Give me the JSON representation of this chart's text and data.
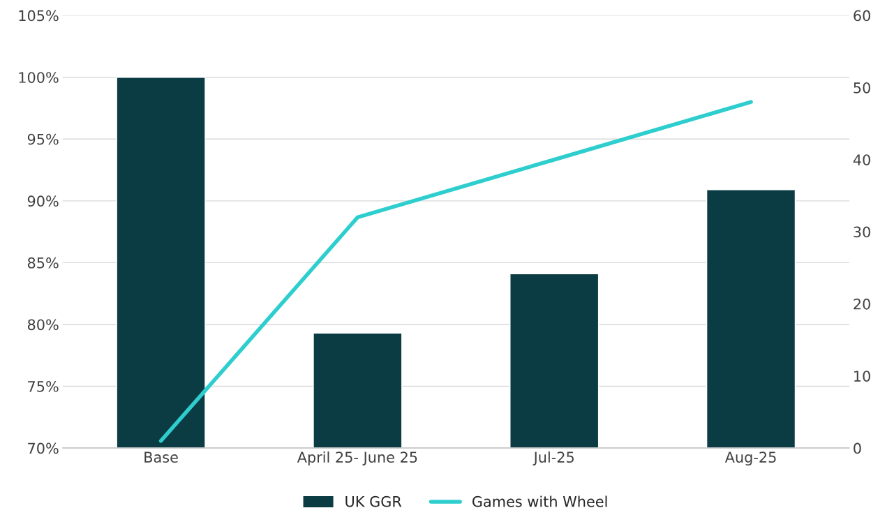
{
  "chart_data": {
    "type": "bar",
    "categories": [
      "Base",
      "April 25- June 25",
      "Jul-25",
      "Aug-25"
    ],
    "series": [
      {
        "name": "UK GGR",
        "color": "#0b3c43",
        "values": [
          100,
          79.3,
          84.1,
          90.9
        ]
      },
      {
        "name": "Games with Wheel",
        "type": "line",
        "axis": "y2",
        "color": "#2ecece",
        "values": [
          1,
          32,
          40,
          48
        ]
      }
    ],
    "ylim": [
      70,
      105
    ],
    "yticks": [
      {
        "value": 70,
        "label": "70%"
      },
      {
        "value": 75,
        "label": "75%"
      },
      {
        "value": 80,
        "label": "80%"
      },
      {
        "value": 85,
        "label": "85%"
      },
      {
        "value": 90,
        "label": "90%"
      },
      {
        "value": 95,
        "label": "95%"
      },
      {
        "value": 100,
        "label": "100%"
      },
      {
        "value": 105,
        "label": "105%"
      }
    ],
    "y2lim": [
      0,
      60
    ],
    "y2ticks": [
      0,
      10,
      20,
      30,
      40,
      50,
      60
    ],
    "grid": "y",
    "legend": "bottom"
  }
}
